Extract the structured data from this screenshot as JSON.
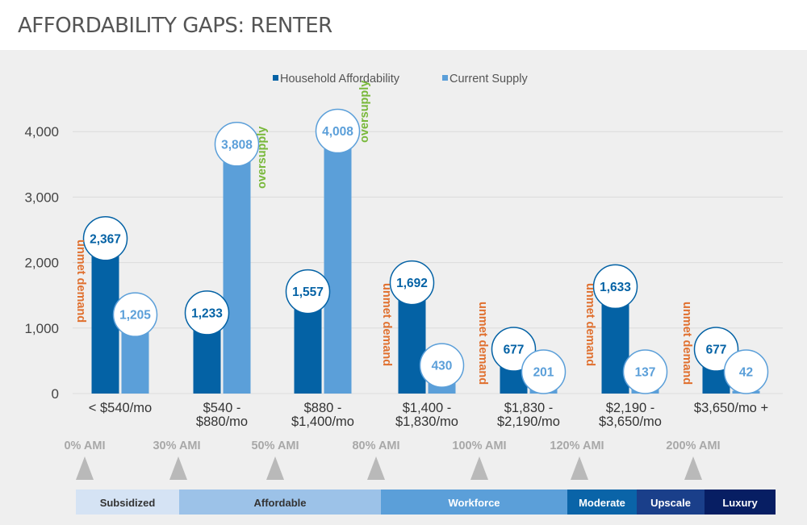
{
  "page": {
    "title": "AFFORDABILITY GAPS: RENTER"
  },
  "colors": {
    "household": "#0462a5",
    "supply": "#5b9fd9",
    "unmet": "#e0702f",
    "oversupply": "#78b83a",
    "grid": "#dcdcdc",
    "axis_text": "#444444",
    "ami_text": "#a8a8a8",
    "ami_marker": "#b9b9b9"
  },
  "chart_data": {
    "type": "bar",
    "title": "AFFORDABILITY GAPS: RENTER",
    "xlabel": "",
    "ylabel": "",
    "ylim": [
      0,
      4000
    ],
    "yticks": [
      0,
      1000,
      2000,
      3000,
      4000
    ],
    "ytick_labels": [
      "0",
      "1,000",
      "2,000",
      "3,000",
      "4,000"
    ],
    "grid": true,
    "legend_position": "top-center",
    "categories": [
      [
        "< $540/mo"
      ],
      [
        "$540 -",
        "$880/mo"
      ],
      [
        "$880 -",
        "$1,400/mo"
      ],
      [
        "$1,400 -",
        "$1,830/mo"
      ],
      [
        "$1,830 -",
        "$2,190/mo"
      ],
      [
        "$2,190 -",
        "$3,650/mo"
      ],
      [
        "$3,650/mo +"
      ]
    ],
    "series": [
      {
        "name": "Household Affordability",
        "values": [
          2367,
          1233,
          1557,
          1692,
          677,
          1633,
          677
        ],
        "labels": [
          "2,367",
          "1,233",
          "1,557",
          "1,692",
          "677",
          "1,633",
          "677"
        ]
      },
      {
        "name": "Current Supply",
        "values": [
          1205,
          3808,
          4008,
          430,
          201,
          137,
          42
        ],
        "labels": [
          "1,205",
          "3,808",
          "4,008",
          "430",
          "201",
          "137",
          "42"
        ]
      }
    ],
    "gap_annotations": [
      "unmet demand",
      "oversupply",
      "oversupply",
      "unmet demand",
      "unmet demand",
      "unmet demand",
      "unmet demand"
    ],
    "ami_markers": [
      "0% AMI",
      "30% AMI",
      "50% AMI",
      "80% AMI",
      "100% AMI",
      "120% AMI",
      "200% AMI"
    ],
    "tiers": [
      {
        "label": "Subsidized",
        "color": "#d5e3f4",
        "text_color": "#333333"
      },
      {
        "label": "Affordable",
        "color": "#9cc2e8",
        "text_color": "#333333"
      },
      {
        "label": "Workforce",
        "color": "#5b9fd9",
        "text_color": "#ffffff"
      },
      {
        "label": "Moderate",
        "color": "#0a64a8",
        "text_color": "#ffffff"
      },
      {
        "label": "Upscale",
        "color": "#1a3f8a",
        "text_color": "#ffffff"
      },
      {
        "label": "Luxury",
        "color": "#071e63",
        "text_color": "#ffffff"
      }
    ]
  }
}
